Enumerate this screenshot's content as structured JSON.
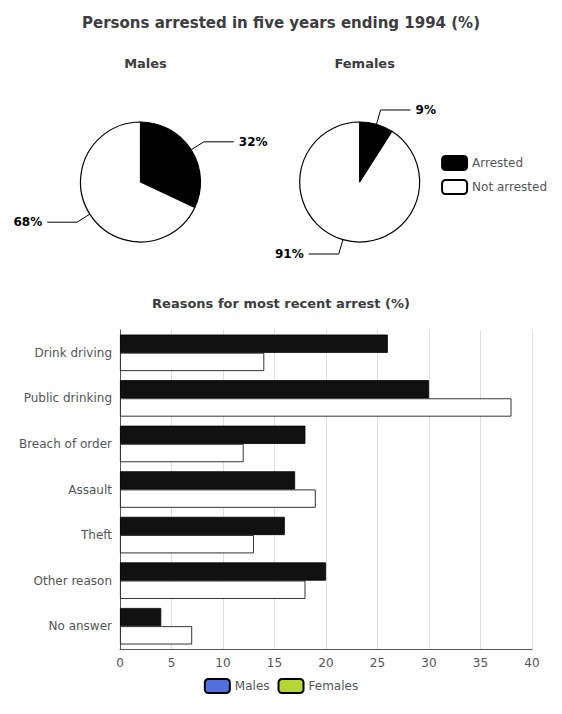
{
  "chart_data": [
    {
      "type": "pie",
      "title": "Persons arrested in five years ending 1994 (%)",
      "categories": [
        "Arrested",
        "Not arrested"
      ],
      "colors": [
        "#000000",
        "#ffffff"
      ],
      "series": [
        {
          "name": "Males",
          "values": [
            32,
            68
          ],
          "value_labels": [
            "32%",
            "68%"
          ]
        },
        {
          "name": "Females",
          "values": [
            9,
            91
          ],
          "value_labels": [
            "9%",
            "91%"
          ]
        }
      ],
      "data_labels": true,
      "legend": "right"
    },
    {
      "type": "bar",
      "title": "Reasons for most recent arrest (%)",
      "orientation": "horizontal",
      "categories": [
        "Drink driving",
        "Public drinking",
        "Breach of order",
        "Assault",
        "Theft",
        "Other reason",
        "No answer"
      ],
      "series": [
        {
          "name": "Males",
          "color": "#111111",
          "values": [
            26,
            30,
            18,
            17,
            16,
            20,
            4
          ]
        },
        {
          "name": "Females",
          "color": "#ffffff",
          "values": [
            14,
            38,
            12,
            19,
            13,
            18,
            7
          ]
        }
      ],
      "xlim": [
        0,
        40
      ],
      "xticks": [
        0,
        5,
        10,
        15,
        20,
        25,
        30,
        35,
        40
      ],
      "grid": true,
      "legend": "bottom"
    }
  ]
}
